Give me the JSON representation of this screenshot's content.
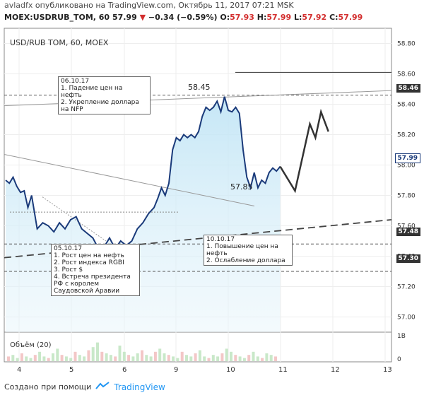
{
  "header": {
    "author": "avladfx",
    "published": "опубликовано на TradingView.com, Октябрь 11, 2017 07:21 MSK",
    "symbol": "MOEX:USDRUB_TOM, 60",
    "last": "57.99",
    "change": "−0.34 (−0.59%)",
    "o_label": "O:",
    "o_value": "57.93",
    "h_label": "H:",
    "h_value": "57.99",
    "l_label": "L:",
    "l_value": "57.92",
    "c_label": "C:",
    "c_value": "57.99"
  },
  "chart_title": "USD/RUB TOM, 60, MOEX",
  "volume_label": "Объём (20)",
  "annotations": {
    "oct6": "06.10.17\n1. Падение цен на\nнефть\n2. Укрепление доллара\nна NFP",
    "oct5": "05.10.17\n1. Рост цен на нефть\n2. Рост индекса RGBI\n3. Рост $\n4. Встреча президента\nРФ с королем\nСаудовской Аравии",
    "oct10": "10.10.17\n1. Повышение цен на\nнефть\n2. Ослабление доллара"
  },
  "callouts": {
    "high": "58.45",
    "low": "57.85"
  },
  "price_tags": {
    "t1": "58.46",
    "t2": "57.99",
    "t3": "57.48",
    "t4": "57.30"
  },
  "footer": {
    "created_with": "Создано при помощи",
    "brand": "TradingView"
  },
  "chart_data": {
    "type": "line",
    "title": "USD/RUB TOM, 60, MOEX",
    "y_axis": {
      "ticks": [
        "58.80",
        "58.60",
        "58.40",
        "58.20",
        "58.00",
        "57.80",
        "57.60",
        "57.40",
        "57.20",
        "57.00"
      ],
      "range": [
        56.9,
        58.9
      ]
    },
    "x_axis": {
      "ticks": [
        "4",
        "5",
        "6",
        "9",
        "10",
        "11",
        "12",
        "13"
      ]
    },
    "volume_axis": {
      "ticks": [
        "1B",
        "0"
      ]
    },
    "series": [
      {
        "values": [
          [
            0,
            57.9
          ],
          [
            0.1,
            57.88
          ],
          [
            0.2,
            57.92
          ],
          [
            0.3,
            57.86
          ],
          [
            0.4,
            57.82
          ],
          [
            0.5,
            57.83
          ],
          [
            0.6,
            57.72
          ],
          [
            0.7,
            57.8
          ],
          [
            0.85,
            57.58
          ],
          [
            1.0,
            57.62
          ],
          [
            1.15,
            57.6
          ],
          [
            1.3,
            57.56
          ],
          [
            1.45,
            57.62
          ],
          [
            1.6,
            57.58
          ],
          [
            1.75,
            57.64
          ],
          [
            1.9,
            57.66
          ],
          [
            2.05,
            57.58
          ],
          [
            2.2,
            57.55
          ],
          [
            2.35,
            57.52
          ],
          [
            2.5,
            57.45
          ],
          [
            2.65,
            57.46
          ],
          [
            2.8,
            57.52
          ],
          [
            2.95,
            57.45
          ],
          [
            3.1,
            57.5
          ],
          [
            3.25,
            57.47
          ],
          [
            3.4,
            57.5
          ],
          [
            3.55,
            57.58
          ],
          [
            3.7,
            57.62
          ],
          [
            3.85,
            57.68
          ],
          [
            4.0,
            57.72
          ],
          [
            4.1,
            57.78
          ],
          [
            4.2,
            57.85
          ],
          [
            4.3,
            57.8
          ],
          [
            4.4,
            57.88
          ],
          [
            4.5,
            58.1
          ],
          [
            4.6,
            58.18
          ],
          [
            4.7,
            58.16
          ],
          [
            4.8,
            58.2
          ],
          [
            4.9,
            58.18
          ],
          [
            5.0,
            58.2
          ],
          [
            5.1,
            58.18
          ],
          [
            5.2,
            58.22
          ],
          [
            5.3,
            58.32
          ],
          [
            5.4,
            58.38
          ],
          [
            5.5,
            58.36
          ],
          [
            5.6,
            58.38
          ],
          [
            5.7,
            58.42
          ],
          [
            5.8,
            58.35
          ],
          [
            5.9,
            58.45
          ],
          [
            6.0,
            58.36
          ],
          [
            6.1,
            58.35
          ],
          [
            6.2,
            58.38
          ],
          [
            6.3,
            58.34
          ],
          [
            6.4,
            58.1
          ],
          [
            6.5,
            57.92
          ],
          [
            6.6,
            57.85
          ],
          [
            6.7,
            57.95
          ],
          [
            6.8,
            57.85
          ],
          [
            6.9,
            57.9
          ],
          [
            7.0,
            57.88
          ],
          [
            7.1,
            57.95
          ],
          [
            7.2,
            57.98
          ],
          [
            7.3,
            57.96
          ],
          [
            7.4,
            57.99
          ]
        ]
      }
    ],
    "forecast": [
      [
        7.4,
        57.99
      ],
      [
        7.8,
        57.83
      ],
      [
        8.2,
        58.27
      ],
      [
        8.35,
        58.18
      ],
      [
        8.5,
        58.35
      ],
      [
        8.7,
        58.22
      ]
    ],
    "levels": [
      "58.46",
      "57.48",
      "57.30",
      "58.61"
    ],
    "grid": true
  }
}
